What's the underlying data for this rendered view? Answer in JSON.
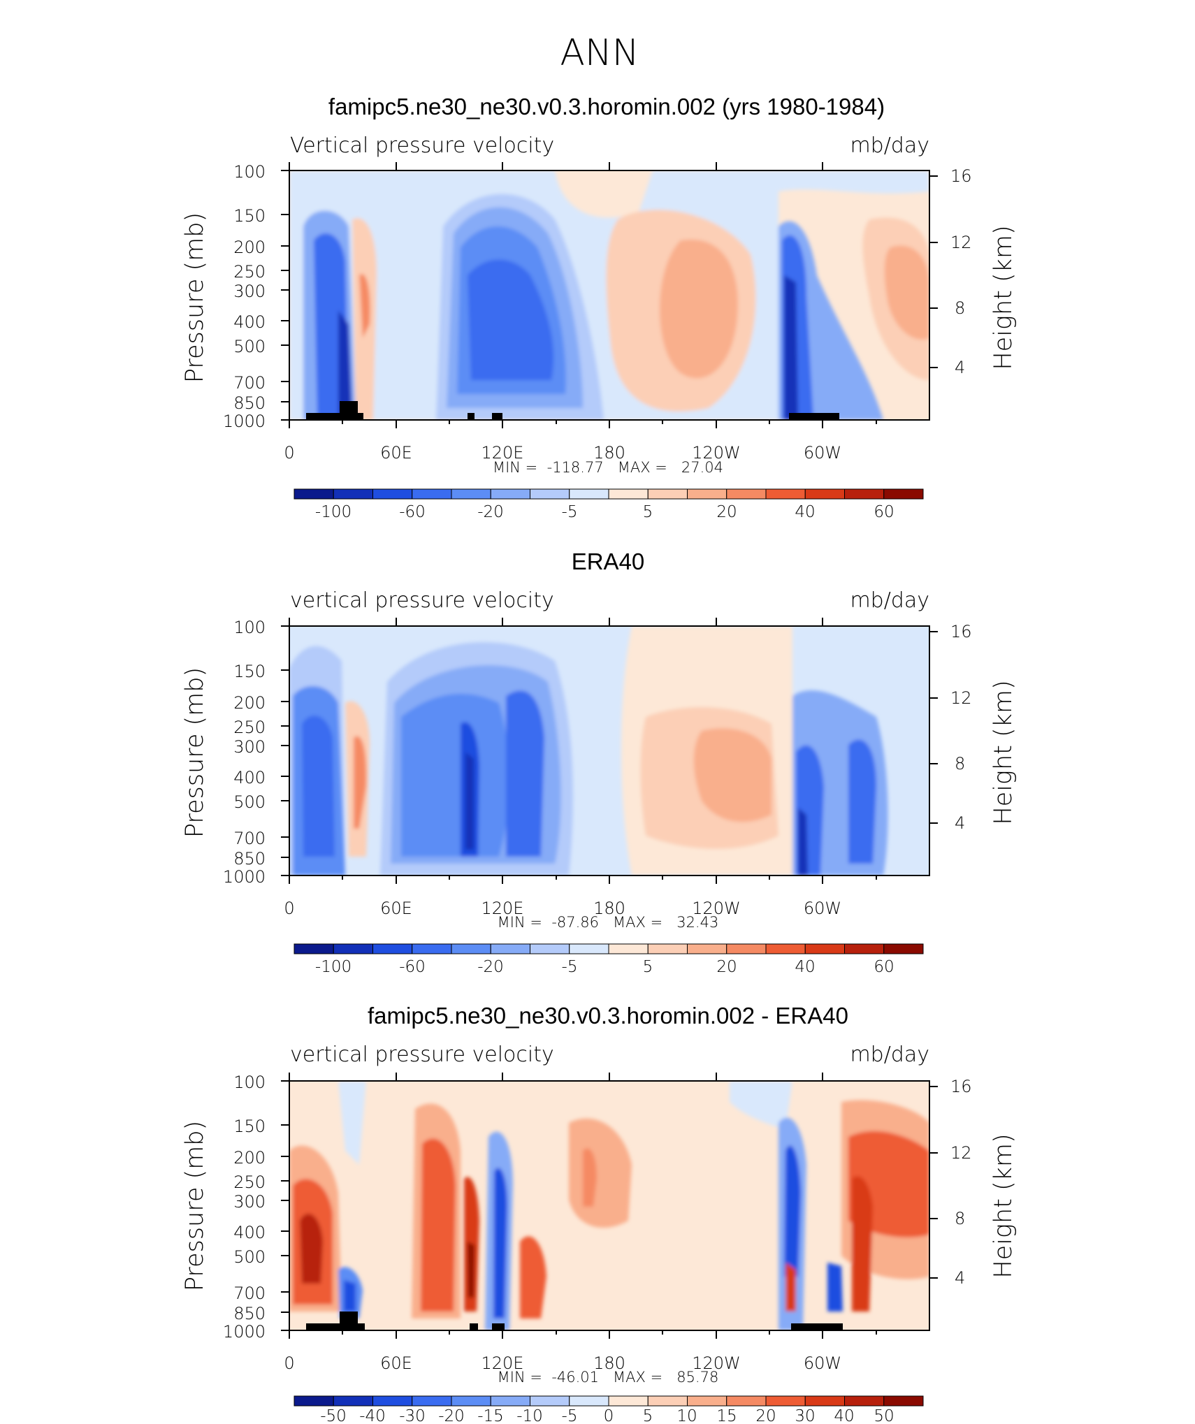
{
  "figure": {
    "title": "ANN"
  },
  "colors": {
    "levels_main": [
      "#0b1a8c",
      "#1230b8",
      "#1f4ee0",
      "#3a6cf0",
      "#5c8df5",
      "#86abf7",
      "#b4cbfa",
      "#d9e8fc",
      "#fde8d7",
      "#fccfb6",
      "#f9af8c",
      "#f58a63",
      "#ee5c34",
      "#d93a17",
      "#b7200c",
      "#8a0a00"
    ],
    "land": "#000000"
  },
  "colorbar_labels_main": [
    "-100",
    "-60",
    "-20",
    "-5",
    "5",
    "20",
    "40",
    "60"
  ],
  "colorbar_labels_diff": [
    "-50",
    "-40",
    "-30",
    "-20",
    "-15",
    "-10",
    "-5",
    "0",
    "5",
    "10",
    "15",
    "20",
    "30",
    "40",
    "50"
  ],
  "axes": {
    "y_left_label": "Pressure (mb)",
    "y_right_label": "Height (km)",
    "y_left_ticks": [
      "100",
      "150",
      "200",
      "250",
      "300",
      "400",
      "500",
      "700",
      "850",
      "1000"
    ],
    "y_right_ticks": [
      "16",
      "12",
      "8",
      "4"
    ],
    "x_ticks": [
      "0",
      "60E",
      "120E",
      "180",
      "120W",
      "60W"
    ]
  },
  "panels": [
    {
      "title": "famipc5.ne30_ne30.v0.3.horomin.002 (yrs 1980-1984)",
      "left_label": "Vertical pressure velocity",
      "right_label": "mb/day",
      "stats": "MIN =  -118.77   MAX =   27.04"
    },
    {
      "title": "ERA40",
      "left_label": "vertical pressure velocity",
      "right_label": "mb/day",
      "stats": "MIN =  -87.86   MAX =   32.43"
    },
    {
      "title": "famipc5.ne30_ne30.v0.3.horomin.002 - ERA40",
      "left_label": "vertical pressure velocity",
      "right_label": "mb/day",
      "stats": "MIN =  -46.01   MAX =   85.78"
    }
  ],
  "chart_data": [
    {
      "type": "heatmap",
      "title": "famipc5.ne30_ne30.v0.3.horomin.002 (yrs 1980-1984)",
      "variable": "Vertical pressure velocity",
      "units": "mb/day",
      "x": "longitude 0-360",
      "y": "pressure 1000-100 mb",
      "min": -118.77,
      "max": 27.04,
      "levels": [
        -100,
        -80,
        -60,
        -40,
        -20,
        -10,
        -5,
        0,
        5,
        10,
        20,
        30,
        40,
        50,
        60
      ],
      "features": [
        {
          "lon": 15,
          "p": 400,
          "value": -60
        },
        {
          "lon": 35,
          "p": 500,
          "value": -110
        },
        {
          "lon": 45,
          "p": 400,
          "value": 25
        },
        {
          "lon": 105,
          "p": 450,
          "value": -70
        },
        {
          "lon": 140,
          "p": 450,
          "value": -75
        },
        {
          "lon": 215,
          "p": 450,
          "value": 15
        },
        {
          "lon": 255,
          "p": 500,
          "value": 15
        },
        {
          "lon": 288,
          "p": 500,
          "value": -90
        },
        {
          "lon": 300,
          "p": 600,
          "value": -40
        },
        {
          "lon": 345,
          "p": 350,
          "value": 15
        }
      ]
    },
    {
      "type": "heatmap",
      "title": "ERA40",
      "variable": "vertical pressure velocity",
      "units": "mb/day",
      "x": "longitude 0-360",
      "y": "pressure 1000-100 mb",
      "min": -87.86,
      "max": 32.43,
      "levels": [
        -100,
        -80,
        -60,
        -40,
        -20,
        -10,
        -5,
        0,
        5,
        10,
        20,
        30,
        40,
        50,
        60
      ],
      "features": [
        {
          "lon": 18,
          "p": 500,
          "value": -60
        },
        {
          "lon": 44,
          "p": 500,
          "value": 30
        },
        {
          "lon": 80,
          "p": 450,
          "value": -45
        },
        {
          "lon": 100,
          "p": 550,
          "value": -85
        },
        {
          "lon": 140,
          "p": 450,
          "value": -60
        },
        {
          "lon": 230,
          "p": 450,
          "value": 15
        },
        {
          "lon": 288,
          "p": 750,
          "value": -80
        },
        {
          "lon": 315,
          "p": 600,
          "value": -70
        }
      ]
    },
    {
      "type": "heatmap",
      "title": "famipc5.ne30_ne30.v0.3.horomin.002 - ERA40",
      "variable": "vertical pressure velocity",
      "units": "mb/day",
      "x": "longitude 0-360",
      "y": "pressure 1000-100 mb",
      "min": -46.01,
      "max": 85.78,
      "levels": [
        -50,
        -40,
        -30,
        -20,
        -15,
        -10,
        -5,
        0,
        5,
        10,
        15,
        20,
        30,
        40,
        50
      ],
      "features": [
        {
          "lon": 12,
          "p": 450,
          "value": 50
        },
        {
          "lon": 30,
          "p": 700,
          "value": -30
        },
        {
          "lon": 85,
          "p": 400,
          "value": 35
        },
        {
          "lon": 100,
          "p": 650,
          "value": 50
        },
        {
          "lon": 115,
          "p": 500,
          "value": -40
        },
        {
          "lon": 135,
          "p": 700,
          "value": 35
        },
        {
          "lon": 168,
          "p": 350,
          "value": 15
        },
        {
          "lon": 283,
          "p": 350,
          "value": -45
        },
        {
          "lon": 283,
          "p": 650,
          "value": 60
        },
        {
          "lon": 310,
          "p": 350,
          "value": 35
        },
        {
          "lon": 338,
          "p": 350,
          "value": 25
        }
      ]
    }
  ]
}
